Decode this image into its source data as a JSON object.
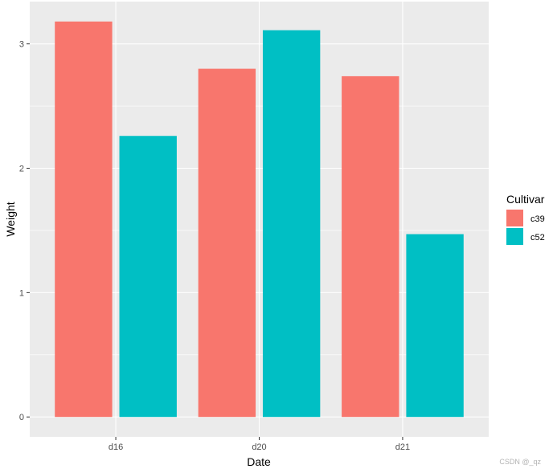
{
  "chart_data": {
    "type": "bar",
    "title": "",
    "xlabel": "Date",
    "ylabel": "Weight",
    "categories": [
      "d16",
      "d20",
      "d21"
    ],
    "series": [
      {
        "name": "c39",
        "color": "#F8766D",
        "values": [
          3.18,
          2.8,
          2.74
        ]
      },
      {
        "name": "c52",
        "color": "#00BFC4",
        "values": [
          2.26,
          3.11,
          1.47
        ]
      }
    ],
    "ylim": [
      -0.16,
      3.34
    ],
    "yticks": [
      0,
      1,
      2,
      3
    ],
    "ytick_labels": [
      "0",
      "1",
      "2",
      "3"
    ],
    "grid": true,
    "legend": {
      "title": "Cultivar",
      "position": "right"
    },
    "panel_background": "#EBEBEB"
  },
  "watermark": "CSDN @_qz"
}
